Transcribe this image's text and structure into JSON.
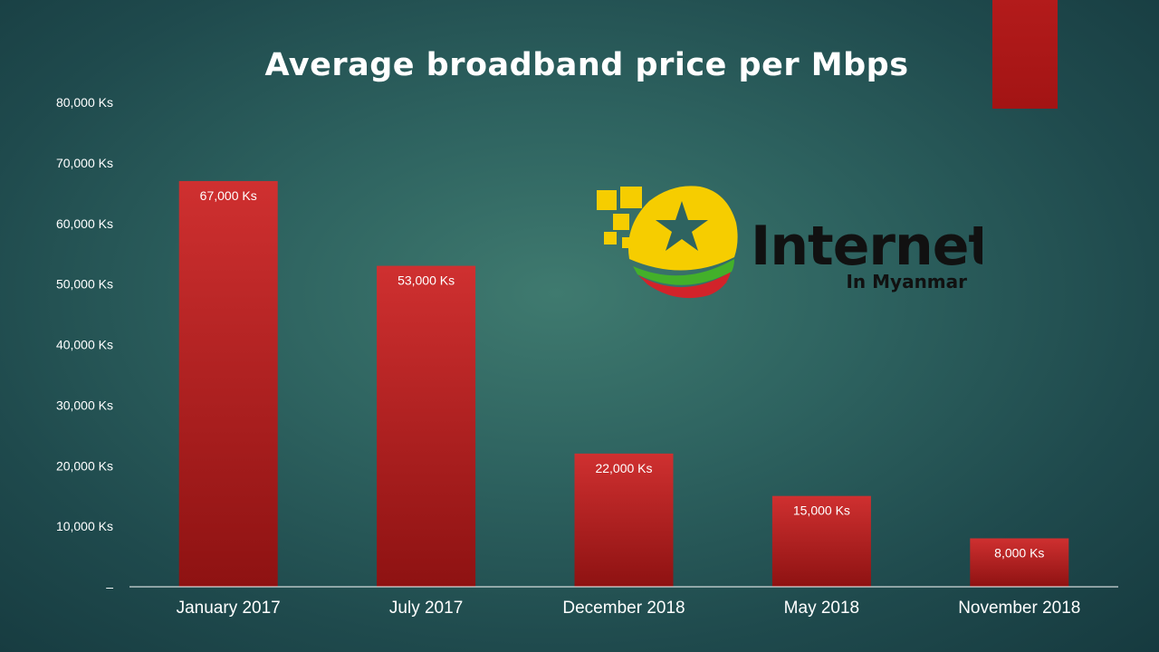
{
  "slide": {
    "title": "Average broadband price per Mbps"
  },
  "logo": {
    "word": "Internet",
    "subtitle": "In Myanmar",
    "colors": {
      "yellow": "#f6cd00",
      "green": "#43b02a",
      "red": "#d2232a",
      "text": "#111111"
    }
  },
  "colors": {
    "bar": "#c62828",
    "bar_dark": "#8e1212",
    "axis_text": "#ffffff",
    "background": "#2e6360"
  },
  "chart_data": {
    "type": "bar",
    "title": "Average broadband price per Mbps",
    "categories": [
      "January 2017",
      "July 2017",
      "December 2018",
      "May 2018",
      "November 2018"
    ],
    "values": [
      67000,
      53000,
      22000,
      15000,
      8000
    ],
    "data_labels": [
      "67,000 Ks",
      "53,000 Ks",
      "22,000 Ks",
      "15,000 Ks",
      "8,000 Ks"
    ],
    "ylim": [
      0,
      80000
    ],
    "yticks": [
      0,
      10000,
      20000,
      30000,
      40000,
      50000,
      60000,
      70000,
      80000
    ],
    "ytick_labels": [
      "–",
      "10,000 Ks",
      "20,000 Ks",
      "30,000 Ks",
      "40,000 Ks",
      "50,000 Ks",
      "60,000 Ks",
      "70,000 Ks",
      "80,000 Ks"
    ],
    "xlabel": "",
    "ylabel": "",
    "grid": false,
    "legend": "none"
  }
}
